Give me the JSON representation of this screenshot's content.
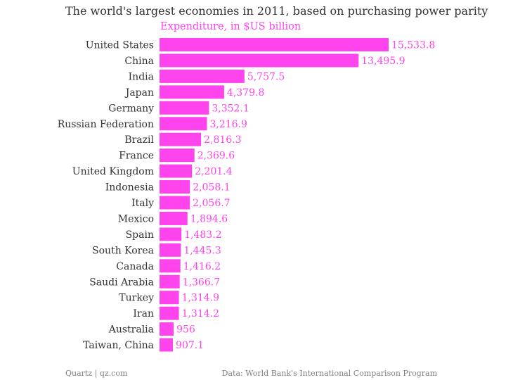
{
  "chart_data": {
    "type": "bar",
    "orientation": "horizontal",
    "title": "The world's largest economies in 2011, based on purchasing power parity",
    "subtitle": "Expenditure, in $US billion",
    "categories": [
      "United States",
      "China",
      "India",
      "Japan",
      "Germany",
      "Russian Federation",
      "Brazil",
      "France",
      "United Kingdom",
      "Indonesia",
      "Italy",
      "Mexico",
      "Spain",
      "South Korea",
      "Canada",
      "Saudi Arabia",
      "Turkey",
      "Iran",
      "Australia",
      "Taiwan, China"
    ],
    "values": [
      15533.8,
      13495.9,
      5757.5,
      4379.8,
      3352.1,
      3216.9,
      2816.3,
      2369.6,
      2201.4,
      2058.1,
      2056.7,
      1894.6,
      1483.2,
      1445.3,
      1416.2,
      1366.7,
      1314.9,
      1314.2,
      956,
      907.1
    ],
    "value_labels": [
      "15,533.8",
      "13,495.9",
      "5,757.5",
      "4,379.8",
      "3,352.1",
      "3,216.9",
      "2,816.3",
      "2,369.6",
      "2,201.4",
      "2,058.1",
      "2,056.7",
      "1,894.6",
      "1,483.2",
      "1,445.3",
      "1,416.2",
      "1,366.7",
      "1,314.9",
      "1,314.2",
      "956",
      "907.1"
    ],
    "xlim": [
      0,
      15533.8
    ],
    "grid": false,
    "bar_color": "#ff44ee",
    "label_color": "#333333"
  },
  "footer": {
    "source_left": "Quartz | qz.com",
    "source_right": "Data: World Bank's International Comparison Program"
  }
}
